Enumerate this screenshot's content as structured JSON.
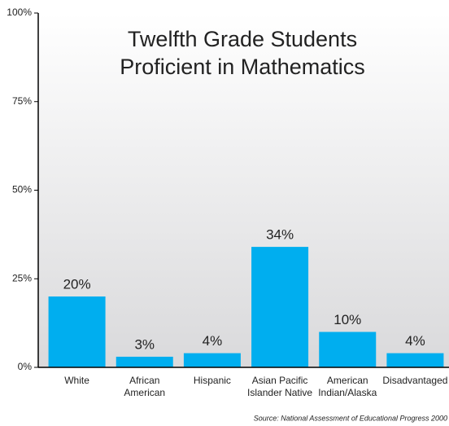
{
  "chart_data": {
    "type": "bar",
    "title": [
      "Twelfth Grade Students",
      "Proficient in Mathematics"
    ],
    "categories": [
      "White",
      "African American",
      "Hispanic",
      "Asian Pacific Islander Native",
      "American Indian/Alaska",
      "Disadvantaged"
    ],
    "values": [
      20,
      3,
      4,
      34,
      10,
      4
    ],
    "value_labels": [
      "20%",
      "3%",
      "4%",
      "34%",
      "10%",
      "4%"
    ],
    "color": "#00aeef",
    "ylim": [
      0,
      100
    ],
    "yticks": [
      {
        "value": 0,
        "label": "0%"
      },
      {
        "value": 25,
        "label": "25%"
      },
      {
        "value": 50,
        "label": "50%"
      },
      {
        "value": 75,
        "label": "75%"
      },
      {
        "value": 100,
        "label": "100%"
      }
    ],
    "source": "Source: National Assessment of Educational Progress 2000"
  }
}
